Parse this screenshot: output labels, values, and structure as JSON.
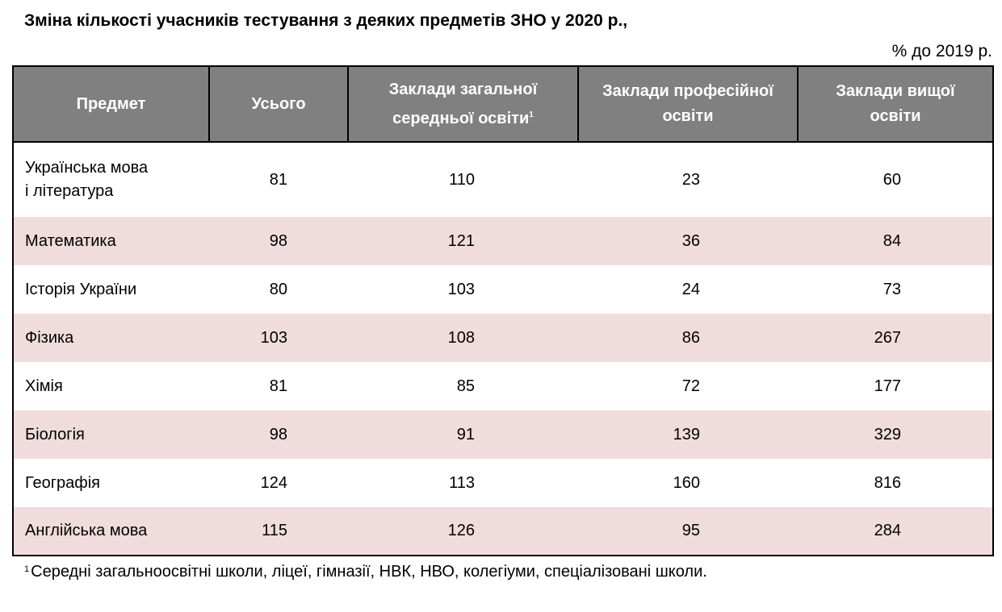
{
  "title": "Зміна кількості учасників тестування з деяких предметів ЗНО у 2020 р.,",
  "unit": "% до 2019 р.",
  "table": {
    "headers": [
      {
        "text": "Предмет"
      },
      {
        "text": "Усього"
      },
      {
        "text": "Заклади загальної середньої освіти",
        "note": "1"
      },
      {
        "text": "Заклади професійної освіти"
      },
      {
        "text": "Заклади вищої освіти"
      }
    ],
    "rows": [
      [
        "Українська мова\nі література",
        81,
        110,
        23,
        60
      ],
      [
        "Математика",
        98,
        121,
        36,
        84
      ],
      [
        "Історія України",
        80,
        103,
        24,
        73
      ],
      [
        "Фізика",
        103,
        108,
        86,
        267
      ],
      [
        "Хімія",
        81,
        85,
        72,
        177
      ],
      [
        "Біологія",
        98,
        91,
        139,
        329
      ],
      [
        "Географія",
        124,
        113,
        160,
        816
      ],
      [
        "Англійська мова",
        115,
        126,
        95,
        284
      ]
    ]
  },
  "footnote": {
    "marker": "1",
    "text": "Середні загальноосвітні школи, ліцеї, гімназії, НВК, НВО, колегіуми, спеціалізовані школи."
  }
}
